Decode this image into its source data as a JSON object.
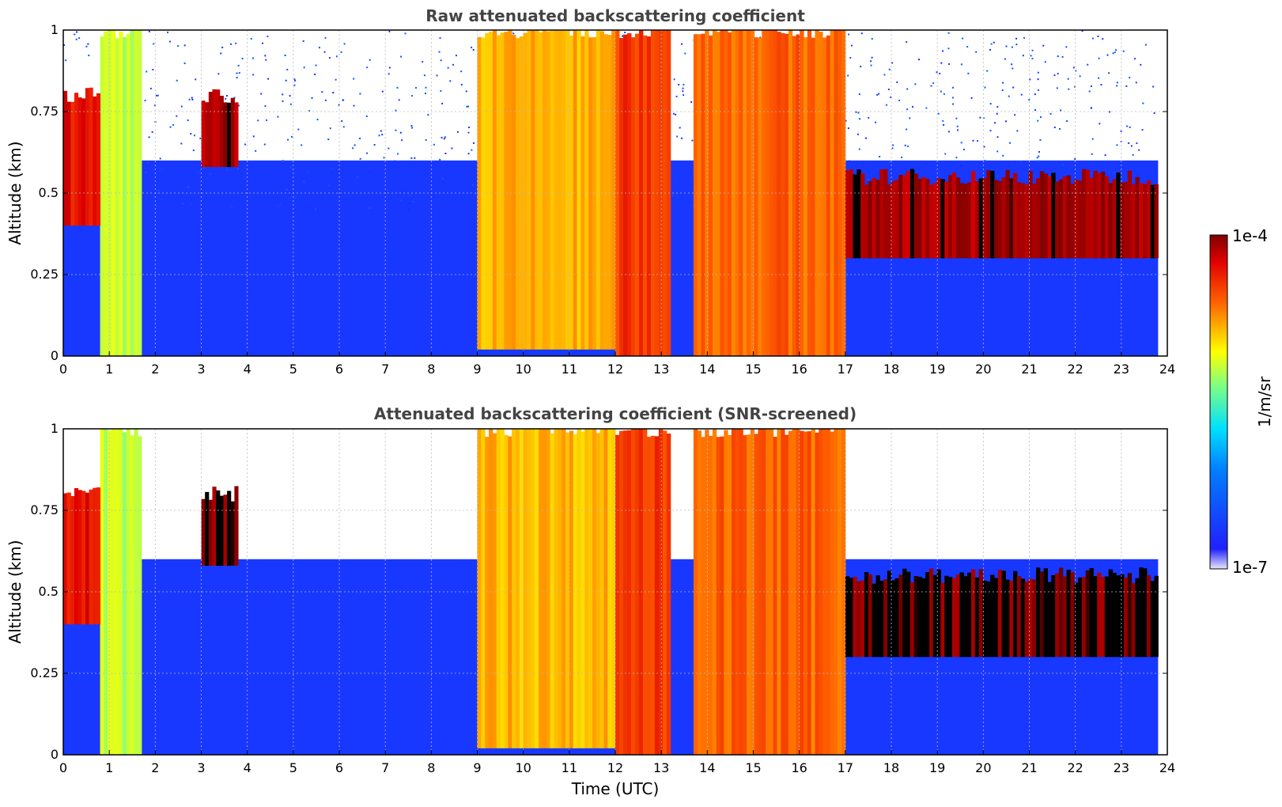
{
  "chart_data": [
    {
      "type": "heatmap",
      "title": "Raw attenuated backscattering coefficient",
      "xlabel": "",
      "ylabel": "Altitude (km)",
      "xlim": [
        0,
        24
      ],
      "ylim": [
        0,
        1
      ],
      "x_ticks": [
        "0",
        "1",
        "2",
        "3",
        "4",
        "5",
        "6",
        "7",
        "8",
        "9",
        "10",
        "11",
        "12",
        "13",
        "14",
        "15",
        "16",
        "17",
        "18",
        "19",
        "20",
        "21",
        "22",
        "23",
        "24"
      ],
      "y_ticks": [
        "0",
        "0.25",
        "0.5",
        "0.75",
        "1"
      ],
      "grid": true,
      "features": [
        {
          "t0": 0.8,
          "t1": 1.7,
          "z0": 0,
          "z1": 1.0,
          "level": 0.6
        },
        {
          "t0": 9.0,
          "t1": 12.0,
          "z0": 0.02,
          "z1": 1.0,
          "level": 0.72
        },
        {
          "t0": 12.0,
          "t1": 13.2,
          "z0": 0,
          "z1": 1.0,
          "level": 0.85
        },
        {
          "t0": 13.7,
          "t1": 17.0,
          "z0": 0,
          "z1": 1.0,
          "level": 0.8
        },
        {
          "t0": 17.0,
          "t1": 23.8,
          "z0": 0.3,
          "z1": 0.55,
          "level": 0.97
        },
        {
          "t0": 3.0,
          "t1": 3.8,
          "z0": 0.58,
          "z1": 0.8,
          "level": 0.97
        },
        {
          "t0": 0.0,
          "t1": 0.8,
          "z0": 0.4,
          "z1": 0.8,
          "level": 0.9
        }
      ]
    },
    {
      "type": "heatmap",
      "title": "Attenuated backscattering coefficient (SNR-screened)",
      "xlabel": "Time (UTC)",
      "ylabel": "Altitude (km)",
      "xlim": [
        0,
        24
      ],
      "ylim": [
        0,
        1
      ],
      "x_ticks": [
        "0",
        "1",
        "2",
        "3",
        "4",
        "5",
        "6",
        "7",
        "8",
        "9",
        "10",
        "11",
        "12",
        "13",
        "14",
        "15",
        "16",
        "17",
        "18",
        "19",
        "20",
        "21",
        "22",
        "23",
        "24"
      ],
      "y_ticks": [
        "0",
        "0.25",
        "0.5",
        "0.75",
        "1"
      ],
      "grid": true,
      "features": [
        {
          "t0": 0.8,
          "t1": 1.7,
          "z0": 0,
          "z1": 1.0,
          "level": 0.6
        },
        {
          "t0": 9.0,
          "t1": 12.0,
          "z0": 0.02,
          "z1": 1.0,
          "level": 0.72
        },
        {
          "t0": 12.0,
          "t1": 13.2,
          "z0": 0,
          "z1": 1.0,
          "level": 0.85
        },
        {
          "t0": 13.7,
          "t1": 17.0,
          "z0": 0,
          "z1": 1.0,
          "level": 0.8
        },
        {
          "t0": 17.0,
          "t1": 23.8,
          "z0": 0.3,
          "z1": 0.55,
          "level": 1.0
        },
        {
          "t0": 3.0,
          "t1": 3.8,
          "z0": 0.58,
          "z1": 0.8,
          "level": 1.0
        },
        {
          "t0": 0.0,
          "t1": 0.8,
          "z0": 0.4,
          "z1": 0.8,
          "level": 0.9
        }
      ]
    }
  ],
  "colorbar": {
    "label": "1/m/sr",
    "max_label": "1e-4",
    "min_label": "1e-7",
    "colormap": "jet",
    "colors": [
      "#e8e8f8",
      "#0000ff",
      "#00ffff",
      "#ffff00",
      "#ff0000",
      "#800000"
    ]
  }
}
